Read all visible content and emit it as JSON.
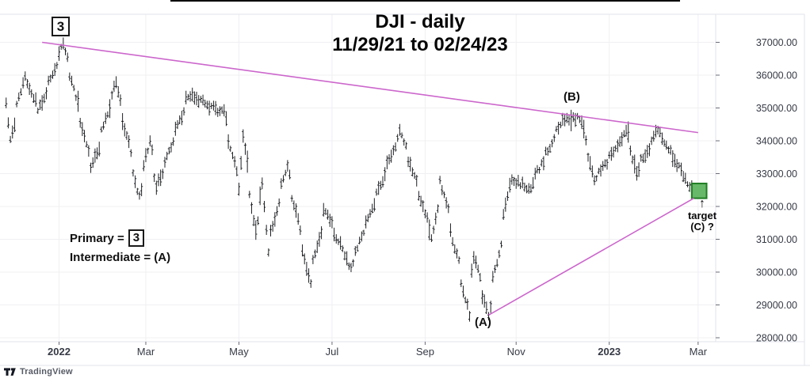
{
  "chart_data": {
    "type": "ohlc",
    "symbol": "DJI",
    "title": "DJI - daily",
    "subtitle": "11/29/21 to 02/24/23",
    "timeframe": "daily",
    "range_start": "11/29/21",
    "range_end": "02/24/23",
    "grid": true,
    "y_axis": {
      "min": 28000,
      "max": 37000,
      "step": 1000,
      "ticks": [
        "37000.00",
        "36000.00",
        "35000.00",
        "34000.00",
        "33000.00",
        "32000.00",
        "31000.00",
        "30000.00",
        "29000.00",
        "28000.00"
      ]
    },
    "x_axis": {
      "ticks": [
        {
          "label": "2022",
          "date": "2022-01-01",
          "bold": true
        },
        {
          "label": "Mar",
          "date": "2022-03-01",
          "bold": false
        },
        {
          "label": "May",
          "date": "2022-05-01",
          "bold": false
        },
        {
          "label": "Jul",
          "date": "2022-07-01",
          "bold": false
        },
        {
          "label": "Sep",
          "date": "2022-09-01",
          "bold": false
        },
        {
          "label": "Nov",
          "date": "2022-11-01",
          "bold": false
        },
        {
          "label": "2023",
          "date": "2023-01-01",
          "bold": true
        },
        {
          "label": "Mar",
          "date": "2023-03-01",
          "bold": false
        }
      ]
    },
    "first_bar_date": "2021-11-29",
    "last_bar_date": "2023-02-24",
    "series_pivots": [
      {
        "date": "2021-11-29",
        "price": 35140
      },
      {
        "date": "2021-12-01",
        "price": 34010
      },
      {
        "date": "2021-12-10",
        "price": 35970
      },
      {
        "date": "2021-12-20",
        "price": 34940
      },
      {
        "date": "2022-01-05",
        "price": 36950
      },
      {
        "date": "2022-01-24",
        "price": 33150
      },
      {
        "date": "2022-02-09",
        "price": 35770
      },
      {
        "date": "2022-02-24",
        "price": 32270
      },
      {
        "date": "2022-03-03",
        "price": 34000
      },
      {
        "date": "2022-03-08",
        "price": 32630
      },
      {
        "date": "2022-03-29",
        "price": 35370
      },
      {
        "date": "2022-04-21",
        "price": 34850
      },
      {
        "date": "2022-05-02",
        "price": 32450
      },
      {
        "date": "2022-05-04",
        "price": 34100
      },
      {
        "date": "2022-05-12",
        "price": 31230
      },
      {
        "date": "2022-05-17",
        "price": 32650
      },
      {
        "date": "2022-05-20",
        "price": 30640
      },
      {
        "date": "2022-06-02",
        "price": 33250
      },
      {
        "date": "2022-06-17",
        "price": 29650
      },
      {
        "date": "2022-06-27",
        "price": 31880
      },
      {
        "date": "2022-07-14",
        "price": 30140
      },
      {
        "date": "2022-08-16",
        "price": 34280
      },
      {
        "date": "2022-09-06",
        "price": 31050
      },
      {
        "date": "2022-09-12",
        "price": 32780
      },
      {
        "date": "2022-09-30",
        "price": 28720
      },
      {
        "date": "2022-10-04",
        "price": 30450
      },
      {
        "date": "2022-10-13",
        "price": 28660
      },
      {
        "date": "2022-10-28",
        "price": 32860
      },
      {
        "date": "2022-11-09",
        "price": 32500
      },
      {
        "date": "2022-12-01",
        "price": 34590
      },
      {
        "date": "2022-12-13",
        "price": 34710
      },
      {
        "date": "2022-12-22",
        "price": 32810
      },
      {
        "date": "2023-01-13",
        "price": 34300
      },
      {
        "date": "2023-01-19",
        "price": 33050
      },
      {
        "date": "2023-02-02",
        "price": 34330
      },
      {
        "date": "2023-02-24",
        "price": 32580
      }
    ],
    "trendlines": [
      {
        "name": "upper-resistance",
        "from": {
          "date": "2021-12-22",
          "price": 37000
        },
        "to": {
          "date": "2023-03-01",
          "price": 34250
        }
      },
      {
        "name": "lower-support",
        "from": {
          "date": "2022-10-13",
          "price": 28690
        },
        "to": {
          "date": "2023-02-27",
          "price": 32250
        }
      }
    ],
    "target_box": {
      "date_start": "2023-02-24",
      "date_end": "2023-03-07",
      "price_top": 32700,
      "price_bottom": 32250
    },
    "colors": {
      "bar": "#1d1f23",
      "grid": "#f0f0f3",
      "axis_border": "#e0e3eb",
      "axis_label": "#363a45",
      "tick_mark": "#6a6d78",
      "trendline": "#cc66cc",
      "target_fill": "#67b868",
      "target_border": "#1f7d23"
    }
  },
  "annotations": {
    "wave_3": {
      "label": "3"
    },
    "wave_b": {
      "label": "(B)"
    },
    "wave_a": {
      "label": "(A)"
    },
    "legend": {
      "primary_prefix": "Primary =",
      "primary_value": "3",
      "intermediate": "Intermediate = (A)"
    },
    "target": {
      "arrow": "↑",
      "line1": "target",
      "line2": "(C) ?"
    }
  },
  "branding": {
    "logo_text": "TradingView"
  }
}
